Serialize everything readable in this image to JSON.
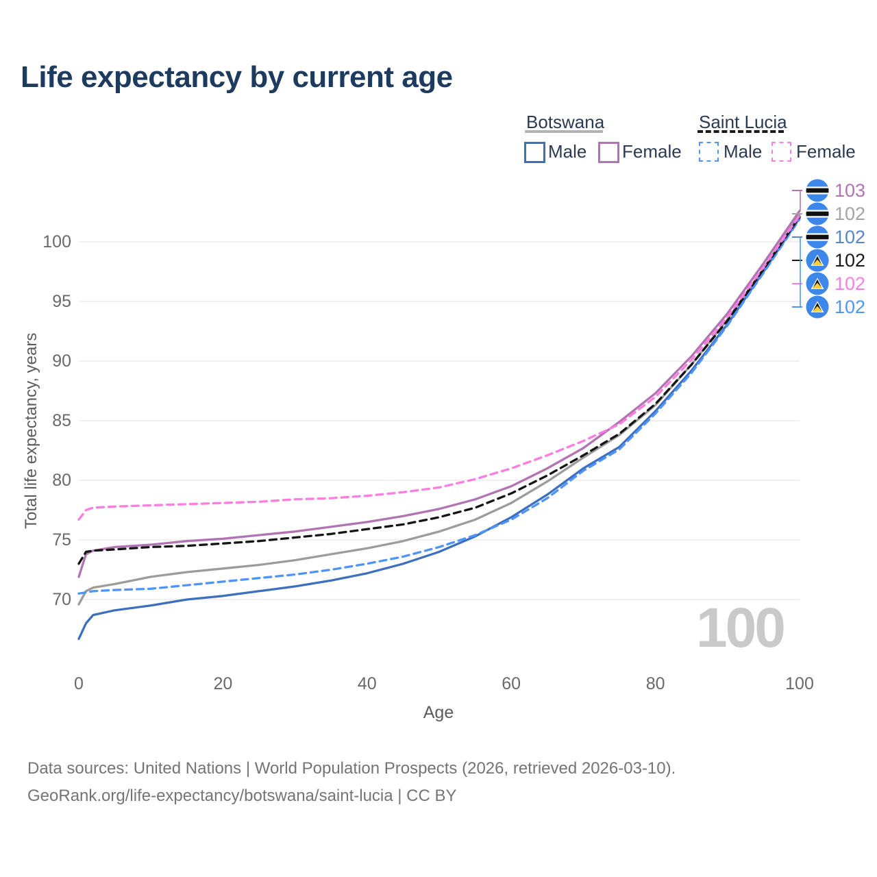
{
  "title": "Life expectancy by current age",
  "colors": {
    "grid": "#ececec",
    "flag_blue": "#3c87e9",
    "title_navy": "#1d3a5f"
  },
  "legend": {
    "groups": [
      {
        "name": "Botswana",
        "line_style": "solid",
        "underline_color": "#b3b3b3",
        "items": [
          {
            "label": "Male",
            "color": "#3d6fbf"
          },
          {
            "label": "Female",
            "color": "#b173b1"
          }
        ]
      },
      {
        "name": "Saint Lucia",
        "line_style": "dashed",
        "underline_color": "#1a1a1a",
        "items": [
          {
            "label": "Male",
            "color": "#4d94ff"
          },
          {
            "label": "Female",
            "color": "#ff7de1"
          }
        ]
      }
    ]
  },
  "chart_data": {
    "type": "line",
    "title": "Life expectancy by current age",
    "xlabel": "Age",
    "ylabel": "Total life expectancy, years",
    "xlim": [
      0,
      100
    ],
    "ylim": [
      66,
      104
    ],
    "xticks": [
      0,
      20,
      40,
      60,
      80,
      100
    ],
    "yticks": [
      70,
      75,
      80,
      85,
      90,
      95,
      100
    ],
    "grid": "horizontal",
    "legend_position": "top-right",
    "x": [
      0,
      1,
      2,
      5,
      10,
      15,
      20,
      25,
      30,
      35,
      40,
      45,
      50,
      55,
      60,
      65,
      70,
      75,
      80,
      85,
      90,
      95,
      100
    ],
    "series": [
      {
        "name": "Botswana Both sexes",
        "country": "Botswana",
        "sex": "both",
        "dash": false,
        "color": "#9c9c9c",
        "values": [
          69.6,
          70.7,
          71.0,
          71.3,
          71.9,
          72.3,
          72.6,
          72.9,
          73.3,
          73.8,
          74.3,
          74.9,
          75.7,
          76.7,
          78.1,
          79.9,
          81.9,
          83.8,
          86.3,
          89.7,
          93.5,
          97.8,
          102.3
        ]
      },
      {
        "name": "Botswana Male",
        "country": "Botswana",
        "sex": "male",
        "dash": false,
        "color": "#3d6fbf",
        "values": [
          66.7,
          68.0,
          68.7,
          69.1,
          69.5,
          70.0,
          70.3,
          70.7,
          71.1,
          71.6,
          72.2,
          73.0,
          74.0,
          75.3,
          76.9,
          78.8,
          81.0,
          82.8,
          85.8,
          89.2,
          93.1,
          97.5,
          102.0
        ]
      },
      {
        "name": "Botswana Female",
        "country": "Botswana",
        "sex": "female",
        "dash": false,
        "color": "#b173b1",
        "values": [
          71.9,
          73.8,
          74.1,
          74.4,
          74.6,
          74.9,
          75.1,
          75.4,
          75.7,
          76.1,
          76.5,
          77.0,
          77.6,
          78.4,
          79.5,
          81.0,
          82.7,
          84.9,
          87.3,
          90.4,
          94.0,
          98.2,
          102.6
        ]
      },
      {
        "name": "Saint Lucia Male",
        "country": "Saint Lucia",
        "sex": "male",
        "dash": true,
        "color": "#4d94ff",
        "values": [
          70.5,
          70.6,
          70.7,
          70.8,
          70.9,
          71.2,
          71.5,
          71.8,
          72.1,
          72.5,
          73.0,
          73.6,
          74.4,
          75.4,
          76.7,
          78.5,
          80.8,
          82.6,
          85.6,
          89.0,
          93.0,
          97.4,
          101.9
        ]
      },
      {
        "name": "Saint Lucia Both sexes",
        "country": "Saint Lucia",
        "sex": "both",
        "dash": true,
        "color": "#141414",
        "values": [
          73.0,
          74.0,
          74.1,
          74.2,
          74.4,
          74.5,
          74.7,
          74.9,
          75.2,
          75.5,
          75.9,
          76.3,
          76.9,
          77.7,
          78.9,
          80.4,
          82.1,
          83.9,
          86.4,
          89.7,
          93.4,
          97.7,
          102.1
        ]
      },
      {
        "name": "Saint Lucia Female",
        "country": "Saint Lucia",
        "sex": "female",
        "dash": true,
        "color": "#ff7de1",
        "values": [
          76.7,
          77.5,
          77.7,
          77.8,
          77.9,
          78.0,
          78.1,
          78.2,
          78.4,
          78.5,
          78.7,
          79.0,
          79.4,
          80.1,
          81.0,
          82.1,
          83.3,
          84.7,
          87.0,
          90.1,
          93.7,
          97.9,
          102.2
        ]
      }
    ]
  },
  "end_labels": [
    {
      "flag": "botswana",
      "value": "103",
      "color": "#b173b1"
    },
    {
      "flag": "botswana",
      "value": "102",
      "color": "#a3a3a3"
    },
    {
      "flag": "botswana",
      "value": "102",
      "color": "#5585cd"
    },
    {
      "flag": "saint-lucia",
      "value": "102",
      "color": "#1a1a1a"
    },
    {
      "flag": "saint-lucia",
      "value": "102",
      "color": "#ff7de1"
    },
    {
      "flag": "saint-lucia",
      "value": "102",
      "color": "#4d94ff"
    }
  ],
  "watermark": "100",
  "footer": {
    "line1": "Data sources: United Nations | World Population Prospects (2026, retrieved 2026-03-10).",
    "line2": "GeoRank.org/life-expectancy/botswana/saint-lucia | CC BY"
  }
}
